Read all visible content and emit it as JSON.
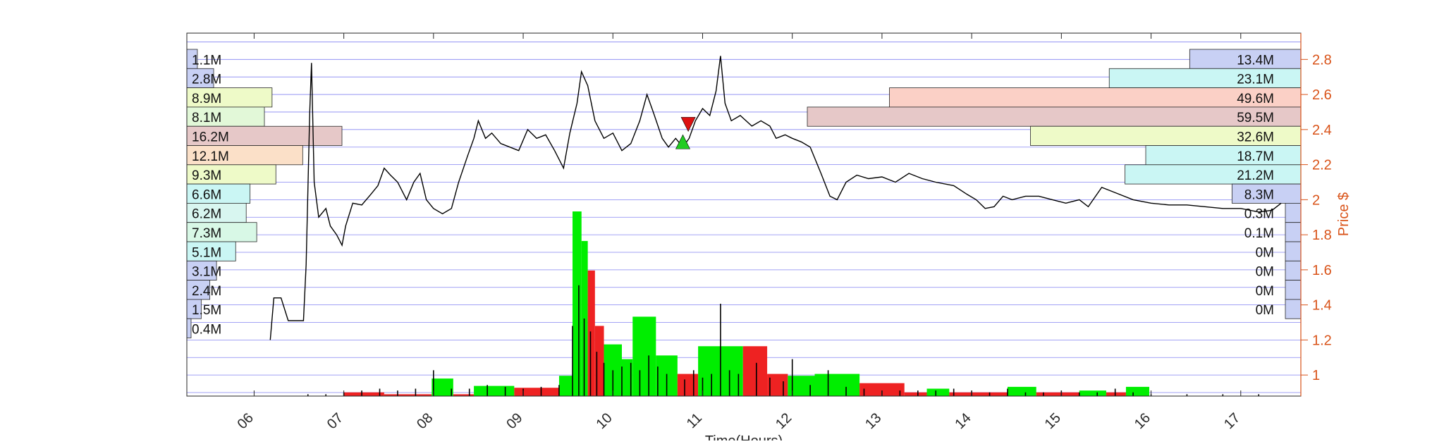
{
  "chart_data": {
    "type": "line",
    "title": "",
    "xlabel": "Time(Hours)",
    "ylabel": "Price $",
    "xlim": [
      5.25,
      17.67
    ],
    "ylim": [
      0.88,
      2.95
    ],
    "x_ticks": [
      6,
      7,
      8,
      9,
      10,
      11,
      12,
      13,
      14,
      15,
      16,
      17
    ],
    "x_tick_labels": [
      "06",
      "07",
      "08",
      "09",
      "10",
      "11",
      "12",
      "13",
      "14",
      "15",
      "16",
      "17"
    ],
    "y_ticks": [
      1,
      1.2,
      1.4,
      1.6,
      1.8,
      2,
      2.2,
      2.4,
      2.6,
      2.8
    ],
    "y_tick_labels": [
      "1",
      "1.2",
      "1.4",
      "1.6",
      "1.8",
      "2",
      "2.2",
      "2.4",
      "2.6",
      "2.8"
    ],
    "grid": "horizontal price-level lines",
    "colors": {
      "axis_right": "#d95319",
      "price_line": "#000000",
      "grid": "#6f6ff0",
      "volume_up": "#00ee00",
      "volume_down": "#ee2222",
      "buy_marker": "#22cc22",
      "sell_marker": "#dd1111"
    },
    "price_series": [
      [
        6.18,
        1.2
      ],
      [
        6.22,
        1.44
      ],
      [
        6.3,
        1.44
      ],
      [
        6.38,
        1.31
      ],
      [
        6.55,
        1.31
      ],
      [
        6.58,
        1.63
      ],
      [
        6.62,
        2.5
      ],
      [
        6.64,
        2.78
      ],
      [
        6.67,
        2.1
      ],
      [
        6.72,
        1.9
      ],
      [
        6.8,
        1.95
      ],
      [
        6.85,
        1.85
      ],
      [
        6.92,
        1.8
      ],
      [
        6.98,
        1.74
      ],
      [
        7.02,
        1.85
      ],
      [
        7.1,
        1.98
      ],
      [
        7.2,
        1.97
      ],
      [
        7.3,
        2.03
      ],
      [
        7.38,
        2.08
      ],
      [
        7.45,
        2.18
      ],
      [
        7.52,
        2.14
      ],
      [
        7.6,
        2.1
      ],
      [
        7.7,
        2.0
      ],
      [
        7.78,
        2.1
      ],
      [
        7.85,
        2.15
      ],
      [
        7.92,
        2.0
      ],
      [
        8.0,
        1.95
      ],
      [
        8.1,
        1.92
      ],
      [
        8.2,
        1.95
      ],
      [
        8.28,
        2.1
      ],
      [
        8.38,
        2.25
      ],
      [
        8.45,
        2.35
      ],
      [
        8.5,
        2.45
      ],
      [
        8.58,
        2.35
      ],
      [
        8.65,
        2.38
      ],
      [
        8.75,
        2.32
      ],
      [
        8.85,
        2.3
      ],
      [
        8.95,
        2.28
      ],
      [
        9.05,
        2.4
      ],
      [
        9.15,
        2.35
      ],
      [
        9.25,
        2.37
      ],
      [
        9.35,
        2.28
      ],
      [
        9.45,
        2.18
      ],
      [
        9.52,
        2.38
      ],
      [
        9.6,
        2.55
      ],
      [
        9.65,
        2.73
      ],
      [
        9.72,
        2.65
      ],
      [
        9.8,
        2.45
      ],
      [
        9.9,
        2.35
      ],
      [
        10.0,
        2.38
      ],
      [
        10.1,
        2.28
      ],
      [
        10.2,
        2.32
      ],
      [
        10.3,
        2.45
      ],
      [
        10.38,
        2.6
      ],
      [
        10.45,
        2.5
      ],
      [
        10.55,
        2.35
      ],
      [
        10.62,
        2.3
      ],
      [
        10.7,
        2.35
      ],
      [
        10.78,
        2.3
      ],
      [
        10.85,
        2.35
      ],
      [
        10.92,
        2.45
      ],
      [
        11.0,
        2.52
      ],
      [
        11.08,
        2.48
      ],
      [
        11.15,
        2.62
      ],
      [
        11.2,
        2.82
      ],
      [
        11.25,
        2.55
      ],
      [
        11.32,
        2.45
      ],
      [
        11.42,
        2.48
      ],
      [
        11.55,
        2.42
      ],
      [
        11.65,
        2.45
      ],
      [
        11.75,
        2.42
      ],
      [
        11.82,
        2.35
      ],
      [
        11.92,
        2.37
      ],
      [
        12.0,
        2.35
      ],
      [
        12.1,
        2.33
      ],
      [
        12.2,
        2.3
      ],
      [
        12.32,
        2.15
      ],
      [
        12.42,
        2.02
      ],
      [
        12.5,
        2.0
      ],
      [
        12.6,
        2.1
      ],
      [
        12.72,
        2.14
      ],
      [
        12.85,
        2.12
      ],
      [
        13.0,
        2.13
      ],
      [
        13.15,
        2.1
      ],
      [
        13.3,
        2.15
      ],
      [
        13.45,
        2.12
      ],
      [
        13.6,
        2.1
      ],
      [
        13.8,
        2.08
      ],
      [
        13.95,
        2.03
      ],
      [
        14.05,
        2.0
      ],
      [
        14.15,
        1.95
      ],
      [
        14.25,
        1.96
      ],
      [
        14.35,
        2.02
      ],
      [
        14.45,
        2.0
      ],
      [
        14.6,
        2.02
      ],
      [
        14.75,
        2.02
      ],
      [
        14.9,
        2.0
      ],
      [
        15.05,
        1.98
      ],
      [
        15.2,
        2.0
      ],
      [
        15.3,
        1.96
      ],
      [
        15.45,
        2.07
      ],
      [
        15.6,
        2.04
      ],
      [
        15.8,
        2.0
      ],
      [
        16.0,
        1.98
      ],
      [
        16.2,
        1.97
      ],
      [
        16.4,
        1.97
      ],
      [
        16.6,
        1.96
      ],
      [
        16.8,
        1.95
      ],
      [
        17.0,
        1.95
      ],
      [
        17.2,
        1.93
      ],
      [
        17.35,
        1.94
      ],
      [
        17.45,
        1.98
      ]
    ],
    "volume_series": [
      [
        6.6,
        0.01
      ],
      [
        6.8,
        0.01
      ],
      [
        7.0,
        0.02
      ],
      [
        7.2,
        0.03
      ],
      [
        7.4,
        0.04
      ],
      [
        7.6,
        0.03
      ],
      [
        7.8,
        0.04
      ],
      [
        8.0,
        0.14
      ],
      [
        8.2,
        0.04
      ],
      [
        8.4,
        0.04
      ],
      [
        8.6,
        0.06
      ],
      [
        8.8,
        0.05
      ],
      [
        9.0,
        0.04
      ],
      [
        9.2,
        0.05
      ],
      [
        9.4,
        0.06
      ],
      [
        9.55,
        0.38
      ],
      [
        9.62,
        0.6
      ],
      [
        9.68,
        0.42
      ],
      [
        9.75,
        0.35
      ],
      [
        9.82,
        0.24
      ],
      [
        9.9,
        0.18
      ],
      [
        10.0,
        0.14
      ],
      [
        10.1,
        0.16
      ],
      [
        10.2,
        0.18
      ],
      [
        10.3,
        0.14
      ],
      [
        10.4,
        0.22
      ],
      [
        10.5,
        0.16
      ],
      [
        10.6,
        0.12
      ],
      [
        10.8,
        0.09
      ],
      [
        10.9,
        0.14
      ],
      [
        11.0,
        0.1
      ],
      [
        11.1,
        0.12
      ],
      [
        11.2,
        0.5
      ],
      [
        11.3,
        0.14
      ],
      [
        11.4,
        0.12
      ],
      [
        11.6,
        0.18
      ],
      [
        11.75,
        0.1
      ],
      [
        11.9,
        0.08
      ],
      [
        12.0,
        0.2
      ],
      [
        12.2,
        0.06
      ],
      [
        12.4,
        0.14
      ],
      [
        12.6,
        0.05
      ],
      [
        12.8,
        0.04
      ],
      [
        13.0,
        0.03
      ],
      [
        13.2,
        0.03
      ],
      [
        13.4,
        0.03
      ],
      [
        13.6,
        0.03
      ],
      [
        13.8,
        0.04
      ],
      [
        14.0,
        0.03
      ],
      [
        14.2,
        0.02
      ],
      [
        14.4,
        0.04
      ],
      [
        14.6,
        0.02
      ],
      [
        14.8,
        0.02
      ],
      [
        15.0,
        0.03
      ],
      [
        15.2,
        0.02
      ],
      [
        15.4,
        0.02
      ],
      [
        15.6,
        0.04
      ],
      [
        15.8,
        0.02
      ],
      [
        16.0,
        0.01
      ],
      [
        16.4,
        0.01
      ],
      [
        16.8,
        0.01
      ],
      [
        17.2,
        0.01
      ]
    ],
    "volume_blocks": [
      {
        "x0": 7.0,
        "x1": 7.45,
        "h": 0.02,
        "dir": "down"
      },
      {
        "x0": 7.45,
        "x1": 7.98,
        "h": 0.01,
        "dir": "down"
      },
      {
        "x0": 7.98,
        "x1": 8.22,
        "h": 0.095,
        "dir": "up"
      },
      {
        "x0": 8.22,
        "x1": 8.45,
        "h": 0.01,
        "dir": "down"
      },
      {
        "x0": 8.45,
        "x1": 8.9,
        "h": 0.055,
        "dir": "up"
      },
      {
        "x0": 8.9,
        "x1": 9.4,
        "h": 0.045,
        "dir": "down"
      },
      {
        "x0": 9.4,
        "x1": 9.55,
        "h": 0.11,
        "dir": "up"
      },
      {
        "x0": 9.55,
        "x1": 9.65,
        "h": 1.0,
        "dir": "up"
      },
      {
        "x0": 9.65,
        "x1": 9.72,
        "h": 0.84,
        "dir": "up"
      },
      {
        "x0": 9.72,
        "x1": 9.8,
        "h": 0.68,
        "dir": "down"
      },
      {
        "x0": 9.8,
        "x1": 9.9,
        "h": 0.38,
        "dir": "down"
      },
      {
        "x0": 9.9,
        "x1": 10.1,
        "h": 0.28,
        "dir": "up"
      },
      {
        "x0": 10.1,
        "x1": 10.22,
        "h": 0.2,
        "dir": "up"
      },
      {
        "x0": 10.22,
        "x1": 10.48,
        "h": 0.43,
        "dir": "up"
      },
      {
        "x0": 10.48,
        "x1": 10.72,
        "h": 0.22,
        "dir": "up"
      },
      {
        "x0": 10.72,
        "x1": 10.95,
        "h": 0.12,
        "dir": "down"
      },
      {
        "x0": 10.95,
        "x1": 11.45,
        "h": 0.27,
        "dir": "up"
      },
      {
        "x0": 11.45,
        "x1": 11.72,
        "h": 0.27,
        "dir": "down"
      },
      {
        "x0": 11.72,
        "x1": 11.95,
        "h": 0.12,
        "dir": "down"
      },
      {
        "x0": 11.95,
        "x1": 12.25,
        "h": 0.11,
        "dir": "up"
      },
      {
        "x0": 12.25,
        "x1": 12.75,
        "h": 0.12,
        "dir": "up"
      },
      {
        "x0": 12.75,
        "x1": 13.25,
        "h": 0.07,
        "dir": "down"
      },
      {
        "x0": 13.25,
        "x1": 13.5,
        "h": 0.02,
        "dir": "down"
      },
      {
        "x0": 13.5,
        "x1": 13.75,
        "h": 0.04,
        "dir": "up"
      },
      {
        "x0": 13.75,
        "x1": 14.4,
        "h": 0.02,
        "dir": "down"
      },
      {
        "x0": 14.4,
        "x1": 14.72,
        "h": 0.05,
        "dir": "up"
      },
      {
        "x0": 14.72,
        "x1": 15.2,
        "h": 0.02,
        "dir": "down"
      },
      {
        "x0": 15.2,
        "x1": 15.5,
        "h": 0.03,
        "dir": "up"
      },
      {
        "x0": 15.5,
        "x1": 15.72,
        "h": 0.02,
        "dir": "down"
      },
      {
        "x0": 15.72,
        "x1": 15.98,
        "h": 0.05,
        "dir": "up"
      }
    ],
    "volume_profile_left": [
      {
        "price": 2.8,
        "label": "1.1M",
        "value": 1.1,
        "color": "#c8d0f4"
      },
      {
        "price": 2.6,
        "label": "2.8M",
        "value": 2.8,
        "color": "#c8d0f4"
      },
      {
        "price": 2.6,
        "label": "8.9M",
        "value": 8.9,
        "color": "#eefac8"
      },
      {
        "price": 2.4,
        "label": "8.1M",
        "value": 8.1,
        "color": "#e2f8d8"
      },
      {
        "price": 2.4,
        "label": "16.2M",
        "value": 16.2,
        "color": "#e6c8c8"
      },
      {
        "price": 2.2,
        "label": "12.1M",
        "value": 12.1,
        "color": "#fbe0c8"
      },
      {
        "price": 2.2,
        "label": "9.3M",
        "value": 9.3,
        "color": "#eefac8"
      },
      {
        "price": 2.0,
        "label": "6.6M",
        "value": 6.6,
        "color": "#caf6f4"
      },
      {
        "price": 2.0,
        "label": "6.2M",
        "value": 6.2,
        "color": "#d8f6f0"
      },
      {
        "price": 1.8,
        "label": "7.3M",
        "value": 7.3,
        "color": "#d8f8e6"
      },
      {
        "price": 1.8,
        "label": "5.1M",
        "value": 5.1,
        "color": "#caf6f4"
      },
      {
        "price": 1.6,
        "label": "3.1M",
        "value": 3.1,
        "color": "#c8d0f4"
      },
      {
        "price": 1.4,
        "label": "2.4M",
        "value": 2.4,
        "color": "#c8d0f4"
      },
      {
        "price": 1.4,
        "label": "1.5M",
        "value": 1.5,
        "color": "#c8d0f4"
      },
      {
        "price": 1.2,
        "label": "0.4M",
        "value": 0.4,
        "color": "#c8d0f4"
      }
    ],
    "volume_profile_right": [
      {
        "price": 2.8,
        "label": "13.4M",
        "value": 13.4,
        "color": "#c8d0f4"
      },
      {
        "price": 2.6,
        "label": "23.1M",
        "value": 23.1,
        "color": "#caf6f4"
      },
      {
        "price": 2.4,
        "label": "49.6M",
        "value": 49.6,
        "color": "#fbd0c6"
      },
      {
        "price": 2.4,
        "label": "59.5M",
        "value": 59.5,
        "color": "#e6c8c8"
      },
      {
        "price": 2.2,
        "label": "32.6M",
        "value": 32.6,
        "color": "#eefac8"
      },
      {
        "price": 2.2,
        "label": "18.7M",
        "value": 18.7,
        "color": "#caf6f4"
      },
      {
        "price": 2.0,
        "label": "21.2M",
        "value": 21.2,
        "color": "#caf6f4"
      },
      {
        "price": 2.0,
        "label": "8.3M",
        "value": 8.3,
        "color": "#c8d0f4"
      },
      {
        "price": 1.8,
        "label": "0.3M",
        "value": 0.3,
        "color": "#c8d0f4"
      },
      {
        "price": 1.8,
        "label": "0.1M",
        "value": 0.1,
        "color": "#c8d0f4"
      },
      {
        "price": 1.6,
        "label": "0M",
        "value": 0,
        "color": "#c8d0f4"
      },
      {
        "price": 1.4,
        "label": "0M",
        "value": 0,
        "color": "#c8d0f4"
      },
      {
        "price": 1.4,
        "label": "0M",
        "value": 0,
        "color": "#c8d0f4"
      },
      {
        "price": 1.2,
        "label": "0M",
        "value": 0,
        "color": "#c8d0f4"
      }
    ],
    "markers": [
      {
        "type": "buy",
        "x": 10.78,
        "y": 2.33
      },
      {
        "type": "sell",
        "x": 10.84,
        "y": 2.43
      }
    ]
  }
}
